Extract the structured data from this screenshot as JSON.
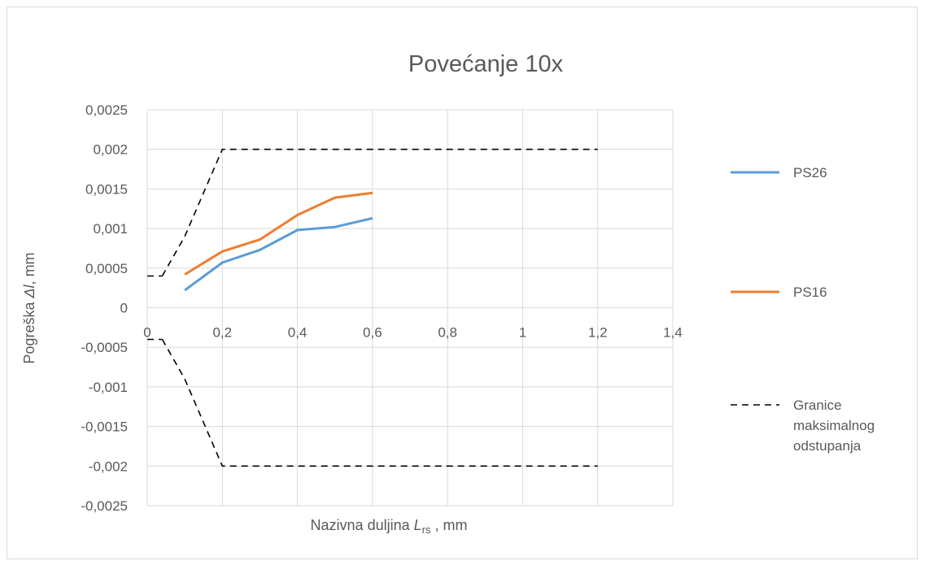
{
  "chart_data": {
    "type": "line",
    "title": "Povećanje 10x",
    "xlabel": {
      "main": "Nazivna duljina ",
      "italic": "L",
      "sub": "rs",
      "unit": " , mm"
    },
    "ylabel": {
      "main": "Pogreška ",
      "italic": "Δl",
      "unit": ", mm"
    },
    "xlim": [
      0,
      1.4
    ],
    "ylim": [
      -0.0025,
      0.0025
    ],
    "x_ticks": [
      0,
      0.2,
      0.4,
      0.6,
      0.8,
      1,
      1.2,
      1.4
    ],
    "x_tick_labels": [
      "0",
      "0,2",
      "0,4",
      "0,6",
      "0,8",
      "1",
      "1,2",
      "1,4"
    ],
    "y_ticks": [
      0.0025,
      0.002,
      0.0015,
      0.001,
      0.0005,
      0,
      -0.0005,
      -0.001,
      -0.0015,
      -0.002,
      -0.0025
    ],
    "y_tick_labels": [
      "0,0025",
      "0,002",
      "0,0015",
      "0,001",
      "0,0005",
      "0",
      "-0,0005",
      "-0,001",
      "-0,0015",
      "-0,002",
      "-0,0025"
    ],
    "grid": true,
    "legend_position": "right",
    "series": [
      {
        "name": "PS26",
        "color": "#5b9bd5",
        "dash": false,
        "x": [
          0.1,
          0.2,
          0.3,
          0.4,
          0.5,
          0.6
        ],
        "y": [
          0.00022,
          0.00057,
          0.00073,
          0.00098,
          0.00102,
          0.00113
        ]
      },
      {
        "name": "PS16",
        "color": "#ed7d31",
        "dash": false,
        "x": [
          0.1,
          0.2,
          0.3,
          0.4,
          0.5,
          0.6
        ],
        "y": [
          0.00042,
          0.00071,
          0.00086,
          0.00117,
          0.00139,
          0.00145
        ]
      },
      {
        "name": "Granice maksimalnog odstupanja",
        "color": "#000000",
        "dash": true,
        "legend_lines": [
          "Granice",
          "maksimalnog",
          "odstupanja"
        ],
        "segments": [
          {
            "x": [
              0.04,
              0.1,
              0.2,
              1.2
            ],
            "y": [
              0.0004,
              0.0009,
              0.002,
              0.002
            ]
          },
          {
            "x": [
              0,
              0.04
            ],
            "y": [
              0.0004,
              0.0004
            ]
          },
          {
            "x": [
              0.04,
              0.1,
              0.2,
              1.2
            ],
            "y": [
              -0.0004,
              -0.0009,
              -0.002,
              -0.002
            ]
          },
          {
            "x": [
              0,
              0.04
            ],
            "y": [
              -0.0004,
              -0.0004
            ]
          }
        ]
      }
    ]
  }
}
